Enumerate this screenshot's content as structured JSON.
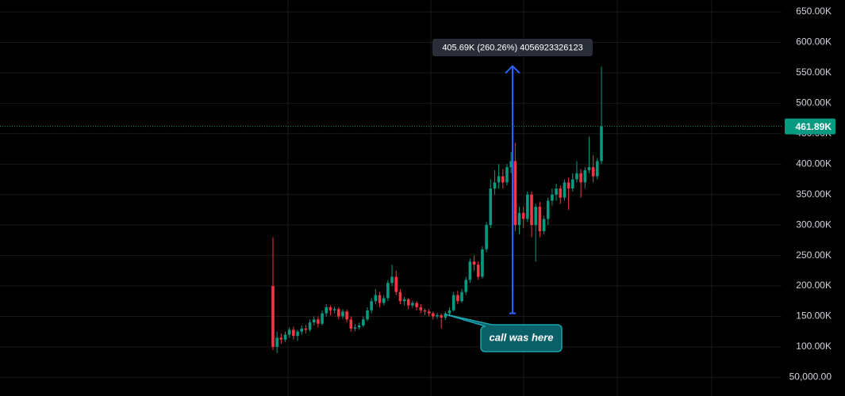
{
  "chart_data": {
    "type": "candlestick",
    "up_color": "#089981",
    "down_color": "#f23645",
    "ylim": [
      19300,
      669500
    ],
    "yticks": [
      {
        "value": 50000,
        "label": "50,000.00"
      },
      {
        "value": 100000,
        "label": "100.00K"
      },
      {
        "value": 150000,
        "label": "150.00K"
      },
      {
        "value": 200000,
        "label": "200.00K"
      },
      {
        "value": 250000,
        "label": "250.00K"
      },
      {
        "value": 300000,
        "label": "300.00K"
      },
      {
        "value": 350000,
        "label": "350.00K"
      },
      {
        "value": 400000,
        "label": "400.00K"
      },
      {
        "value": 450000,
        "label": "450.00K"
      },
      {
        "value": 500000,
        "label": "500.00K"
      },
      {
        "value": 550000,
        "label": "550.00K"
      },
      {
        "value": 600000,
        "label": "600.00K"
      },
      {
        "value": 650000,
        "label": "650.00K"
      }
    ],
    "grid": true,
    "last_price": {
      "value": 461890,
      "label": "461.89K"
    },
    "measure": {
      "label": "405.69K (260.26%) 4056923326123",
      "from": 155000,
      "to": 561000
    },
    "callout": "call was here",
    "ohlc": [
      [
        200000,
        280000,
        95000,
        100000
      ],
      [
        100000,
        125000,
        90000,
        115000
      ],
      [
        115000,
        122000,
        105000,
        112000
      ],
      [
        112000,
        125000,
        108000,
        120000
      ],
      [
        120000,
        132000,
        115000,
        128000
      ],
      [
        128000,
        133000,
        112000,
        118000
      ],
      [
        118000,
        128000,
        110000,
        125000
      ],
      [
        125000,
        135000,
        120000,
        130000
      ],
      [
        130000,
        136000,
        122000,
        128000
      ],
      [
        128000,
        145000,
        125000,
        140000
      ],
      [
        140000,
        150000,
        135000,
        145000
      ],
      [
        145000,
        150000,
        132000,
        138000
      ],
      [
        138000,
        160000,
        135000,
        155000
      ],
      [
        155000,
        170000,
        150000,
        165000
      ],
      [
        165000,
        168000,
        152000,
        160000
      ],
      [
        160000,
        166000,
        155000,
        162000
      ],
      [
        162000,
        165000,
        145000,
        150000
      ],
      [
        150000,
        162000,
        146000,
        158000
      ],
      [
        158000,
        161000,
        140000,
        145000
      ],
      [
        145000,
        150000,
        125000,
        130000
      ],
      [
        130000,
        137000,
        126000,
        132000
      ],
      [
        132000,
        140000,
        128000,
        135000
      ],
      [
        135000,
        150000,
        132000,
        145000
      ],
      [
        145000,
        165000,
        142000,
        160000
      ],
      [
        160000,
        180000,
        155000,
        175000
      ],
      [
        175000,
        195000,
        170000,
        185000
      ],
      [
        185000,
        190000,
        165000,
        172000
      ],
      [
        172000,
        185000,
        168000,
        180000
      ],
      [
        180000,
        210000,
        175000,
        205000
      ],
      [
        205000,
        235000,
        200000,
        215000
      ],
      [
        215000,
        225000,
        185000,
        190000
      ],
      [
        190000,
        195000,
        170000,
        175000
      ],
      [
        175000,
        182000,
        168000,
        178000
      ],
      [
        178000,
        180000,
        162000,
        168000
      ],
      [
        168000,
        176000,
        164000,
        172000
      ],
      [
        172000,
        175000,
        160000,
        165000
      ],
      [
        165000,
        170000,
        155000,
        160000
      ],
      [
        160000,
        163000,
        152000,
        158000
      ],
      [
        158000,
        162000,
        150000,
        155000
      ],
      [
        155000,
        158000,
        145000,
        150000
      ],
      [
        150000,
        156000,
        146000,
        152000
      ],
      [
        152000,
        155000,
        130000,
        148000
      ],
      [
        148000,
        158000,
        144000,
        155000
      ],
      [
        155000,
        165000,
        150000,
        160000
      ],
      [
        160000,
        190000,
        158000,
        185000
      ],
      [
        185000,
        192000,
        170000,
        175000
      ],
      [
        175000,
        195000,
        172000,
        190000
      ],
      [
        190000,
        215000,
        185000,
        210000
      ],
      [
        210000,
        245000,
        205000,
        240000
      ],
      [
        240000,
        250000,
        225000,
        235000
      ],
      [
        235000,
        240000,
        210000,
        215000
      ],
      [
        215000,
        265000,
        212000,
        260000
      ],
      [
        260000,
        305000,
        255000,
        300000
      ],
      [
        300000,
        375000,
        295000,
        360000
      ],
      [
        360000,
        390000,
        350000,
        370000
      ],
      [
        370000,
        400000,
        360000,
        380000
      ],
      [
        380000,
        392000,
        360000,
        370000
      ],
      [
        370000,
        400000,
        365000,
        395000
      ],
      [
        395000,
        420000,
        385000,
        405000
      ],
      [
        405000,
        435000,
        290000,
        300000
      ],
      [
        300000,
        330000,
        285000,
        320000
      ],
      [
        320000,
        330000,
        295000,
        310000
      ],
      [
        310000,
        355000,
        305000,
        350000
      ],
      [
        350000,
        355000,
        280000,
        300000
      ],
      [
        300000,
        335000,
        240000,
        330000
      ],
      [
        330000,
        338000,
        280000,
        290000
      ],
      [
        290000,
        315000,
        285000,
        310000
      ],
      [
        310000,
        345000,
        300000,
        340000
      ],
      [
        340000,
        360000,
        332000,
        350000
      ],
      [
        350000,
        368000,
        340000,
        360000
      ],
      [
        360000,
        365000,
        335000,
        345000
      ],
      [
        345000,
        375000,
        340000,
        370000
      ],
      [
        370000,
        378000,
        325000,
        360000
      ],
      [
        360000,
        385000,
        355000,
        375000
      ],
      [
        375000,
        405000,
        370000,
        385000
      ],
      [
        385000,
        392000,
        345000,
        370000
      ],
      [
        370000,
        395000,
        360000,
        390000
      ],
      [
        390000,
        445000,
        385000,
        395000
      ],
      [
        395000,
        415000,
        370000,
        380000
      ],
      [
        380000,
        410000,
        375000,
        405000
      ],
      [
        405000,
        560000,
        400000,
        461890
      ]
    ]
  }
}
